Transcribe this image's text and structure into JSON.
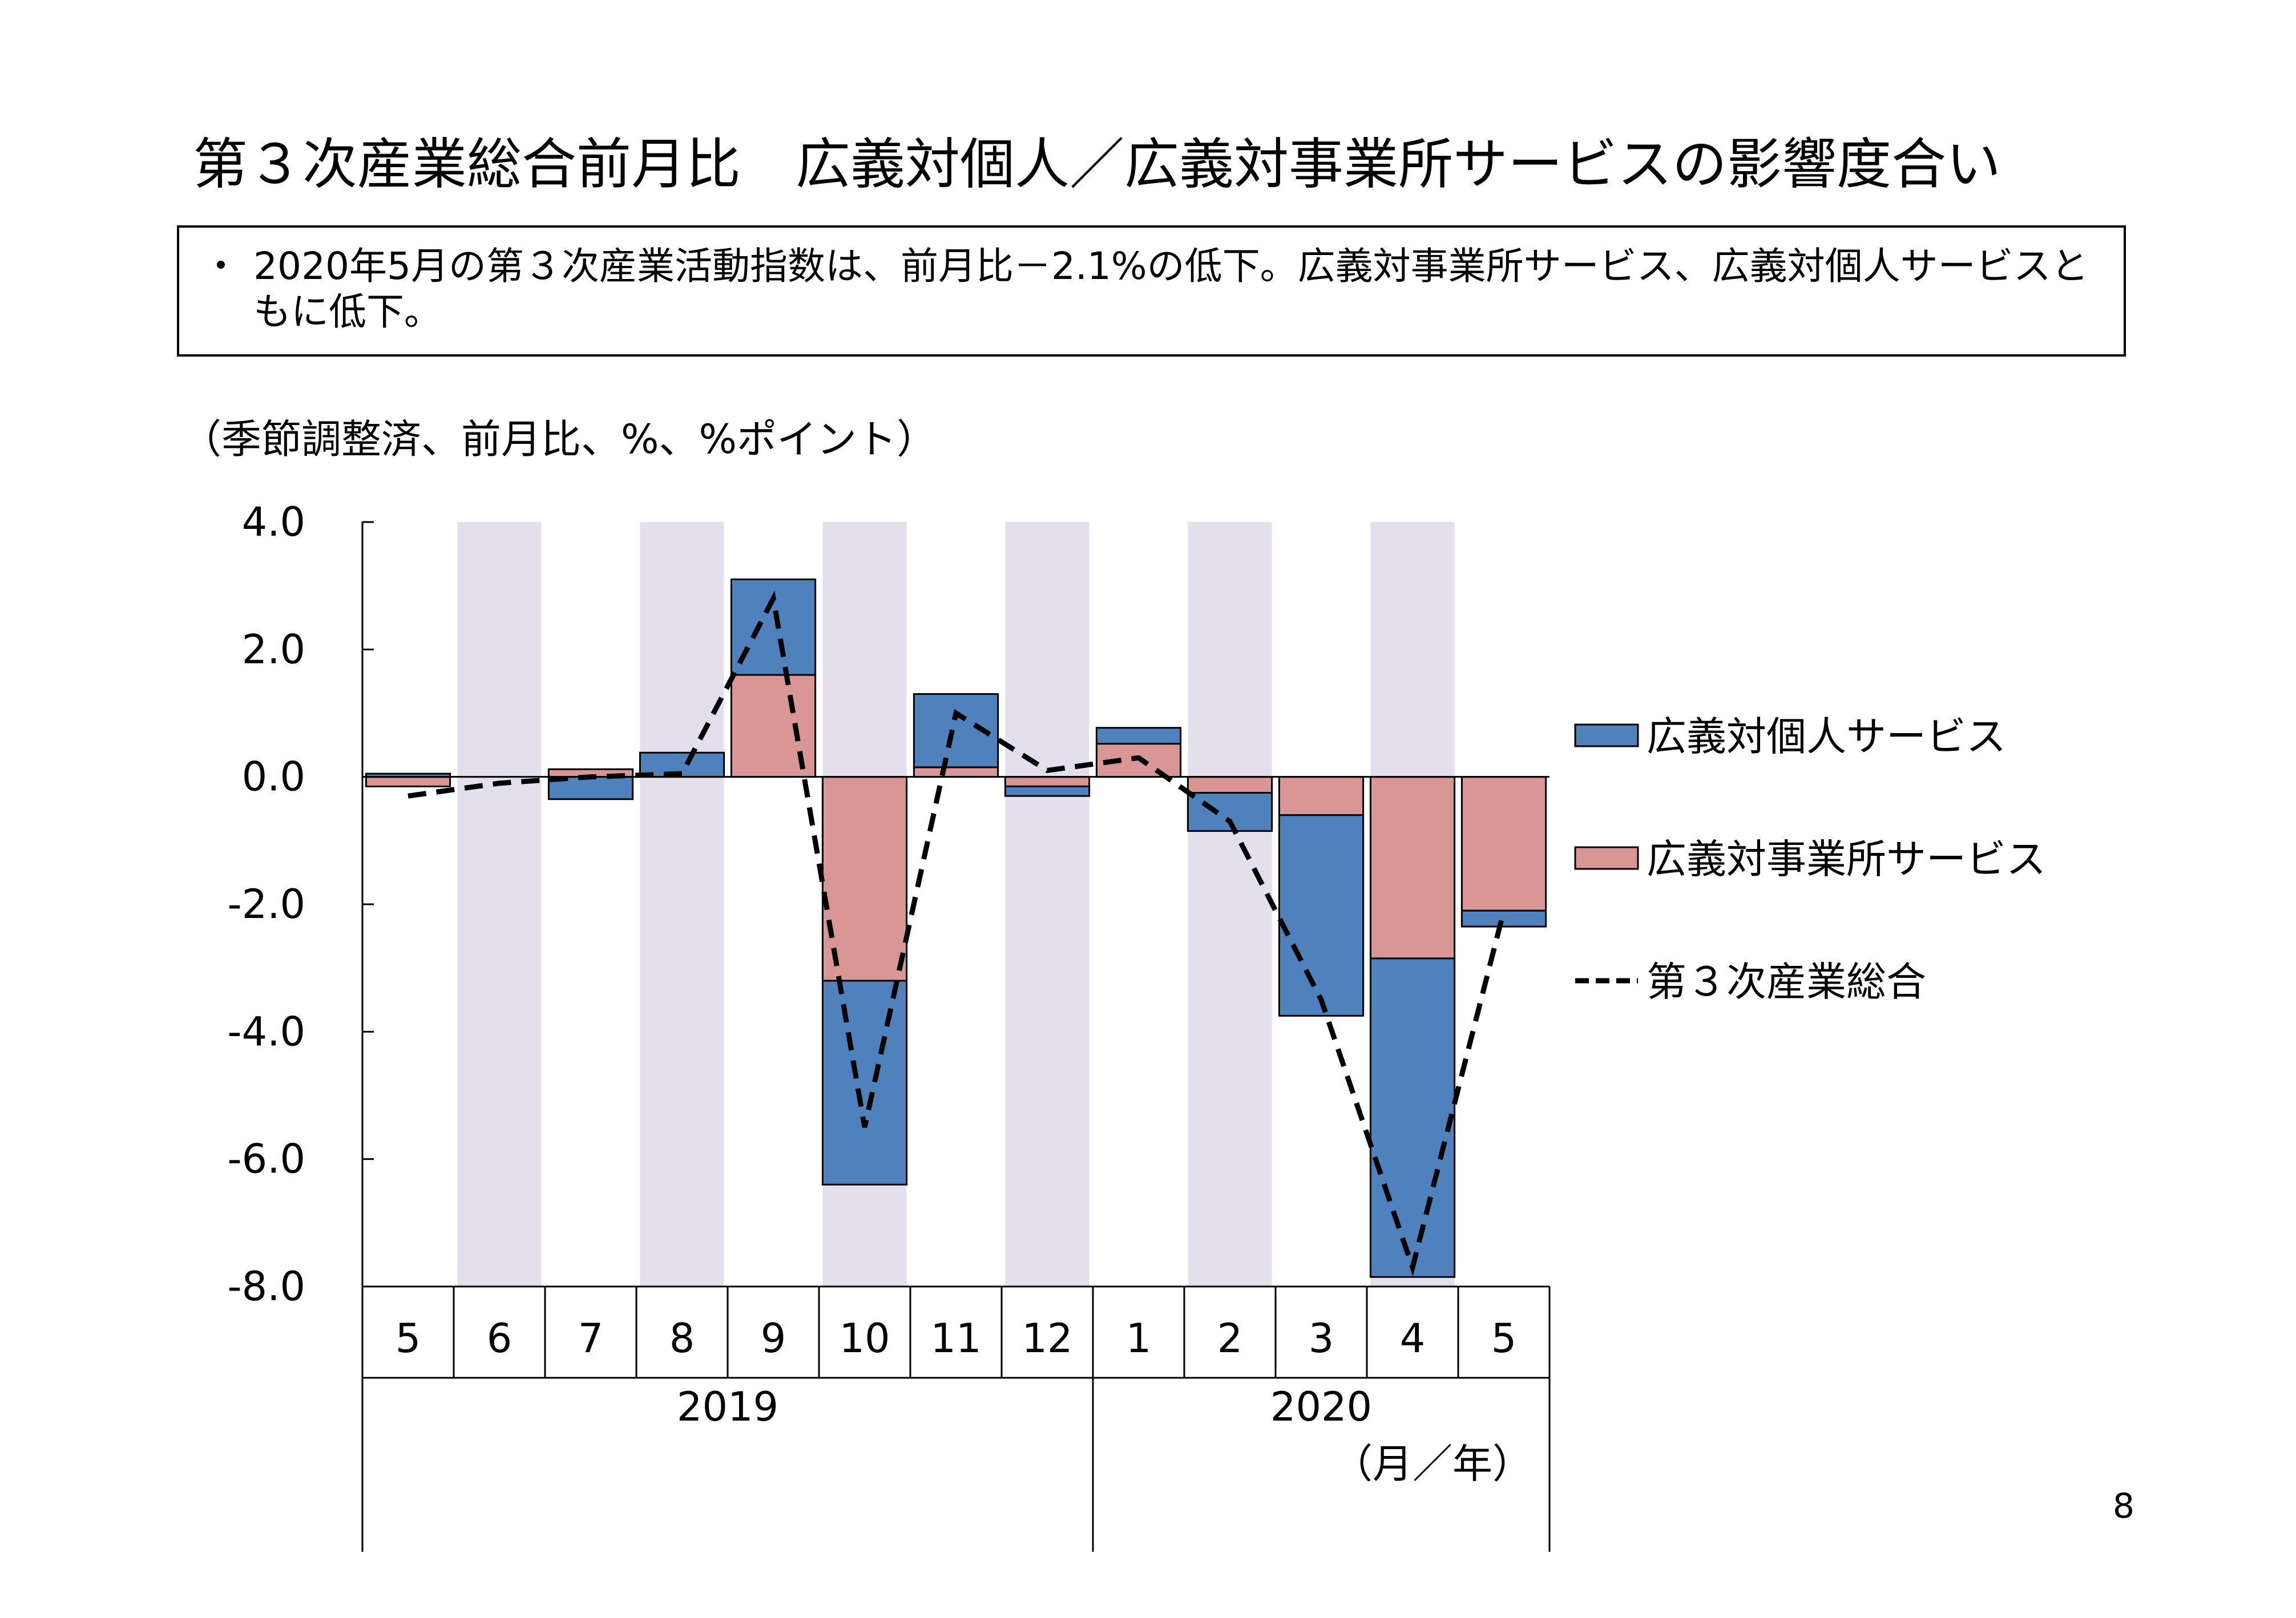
{
  "title": "第３次産業総合前月比　広義対個人／広義対事業所サービスの影響度合い",
  "summary": {
    "bullet": "・",
    "text": "2020年5月の第３次産業活動指数は、前月比－2.1%の低下。広義対事業所サービス、広義対個人サービスともに低下。"
  },
  "unit_label": "（季節調整済、前月比、%、%ポイント）",
  "page_number": "8",
  "colors": {
    "personal": "#4F81BD",
    "business": "#D99694",
    "shade": "#E4DFEC",
    "line": "#000000"
  },
  "chart_data": {
    "type": "bar",
    "stacked": true,
    "categories": [
      "5",
      "6",
      "7",
      "8",
      "9",
      "10",
      "11",
      "12",
      "1",
      "2",
      "3",
      "4",
      "5"
    ],
    "year_groups": [
      {
        "label": "2019",
        "start": 0,
        "end": 7
      },
      {
        "label": "2020",
        "start": 8,
        "end": 12
      }
    ],
    "x_axis_unit": "（月／年）",
    "ylim": [
      -8.0,
      4.0
    ],
    "yticks": [
      4.0,
      2.0,
      0.0,
      -2.0,
      -4.0,
      -6.0,
      -8.0
    ],
    "ytick_labels": [
      "4.0",
      "2.0",
      "0.0",
      "-2.0",
      "-4.0",
      "-6.0",
      "-8.0"
    ],
    "shaded_categories": [
      1,
      3,
      5,
      7,
      9,
      11
    ],
    "series": [
      {
        "name": "広義対個人サービス",
        "kind": "bar",
        "color": "#4F81BD",
        "values": [
          0.05,
          0.0,
          -0.35,
          0.38,
          1.5,
          -3.2,
          1.15,
          -0.15,
          0.25,
          -0.6,
          -3.15,
          -5.0,
          -0.25
        ]
      },
      {
        "name": "広義対事業所サービス",
        "kind": "bar",
        "color": "#D99694",
        "values": [
          -0.15,
          0.0,
          0.12,
          0.0,
          1.6,
          -3.2,
          0.15,
          -0.15,
          0.52,
          -0.25,
          -0.6,
          -2.85,
          -2.1
        ]
      },
      {
        "name": "第３次産業総合",
        "kind": "line",
        "style": "dashed",
        "color": "#000000",
        "values": [
          -0.3,
          -0.1,
          0.0,
          0.05,
          2.8,
          -5.5,
          1.0,
          0.1,
          0.3,
          -0.7,
          -3.5,
          -7.7,
          -2.1
        ]
      }
    ],
    "legend_position": "right"
  }
}
